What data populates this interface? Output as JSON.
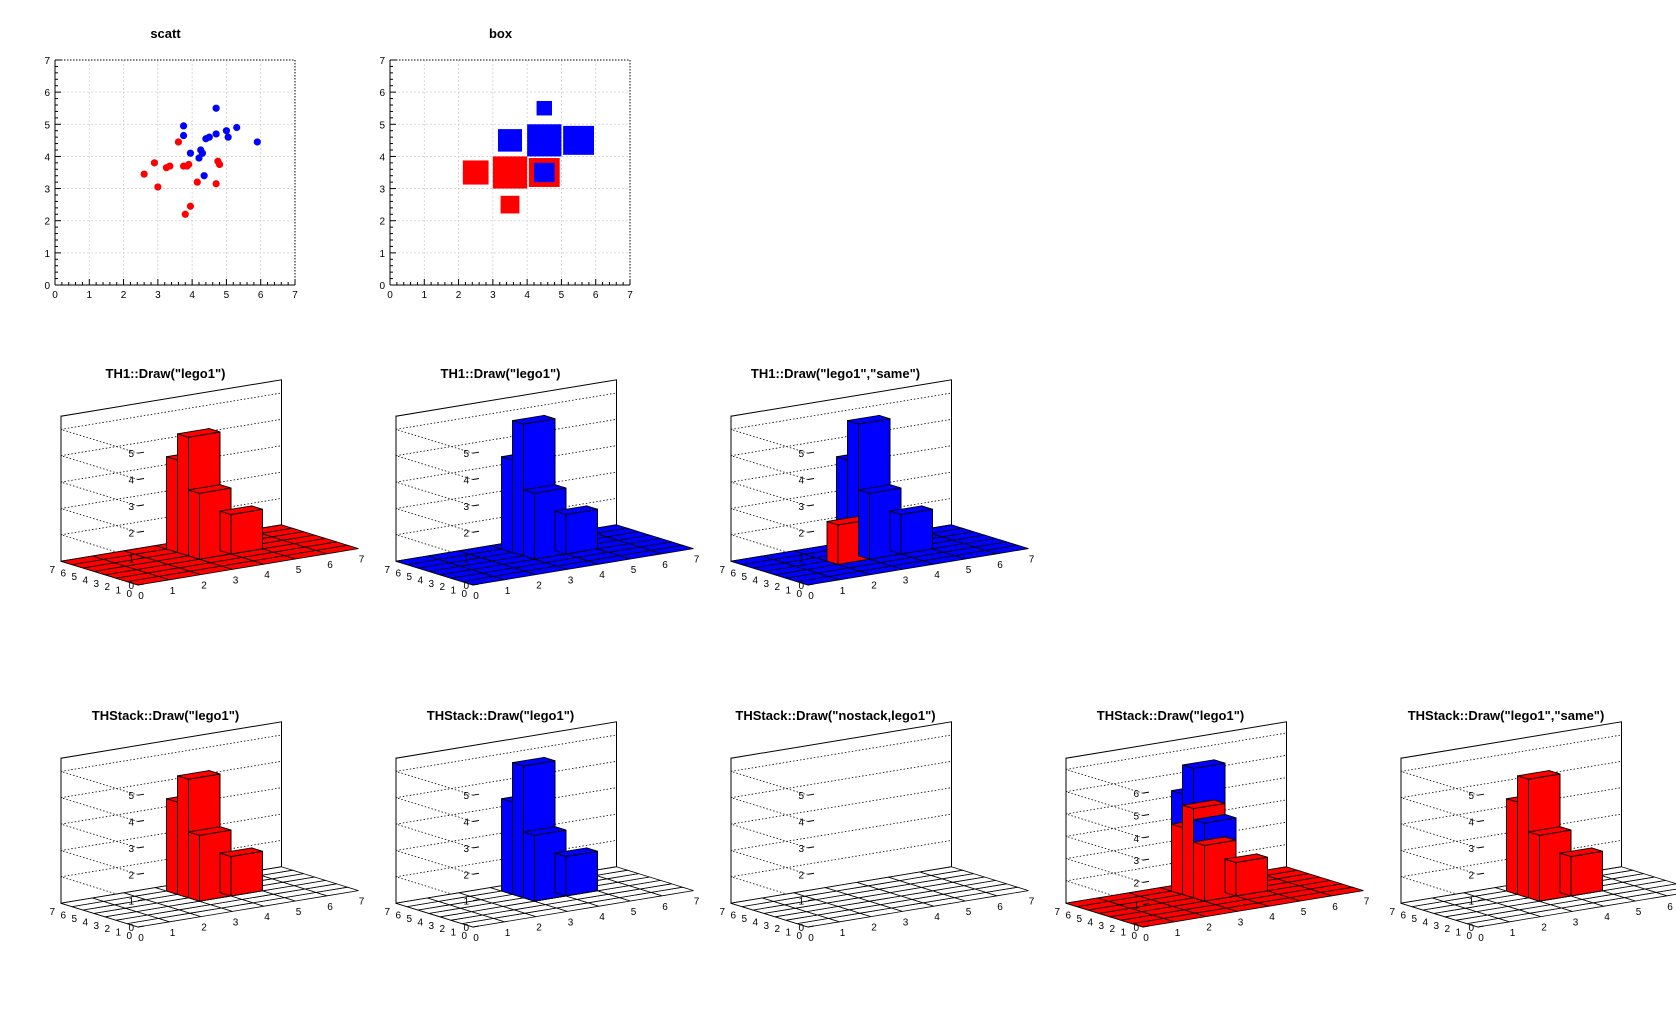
{
  "colors": {
    "red": "#ff0000",
    "blue": "#0000ff",
    "axis": "#000000",
    "grid": "#d0d0d0"
  },
  "chart_data": [
    {
      "id": "scatt",
      "type": "scatter",
      "title": "scatt",
      "xlim": [
        0,
        7
      ],
      "ylim": [
        0,
        7
      ],
      "grid": true,
      "x_ticks": [
        "0",
        "1",
        "2",
        "3",
        "4",
        "5",
        "6",
        "7"
      ],
      "y_ticks": [
        "0",
        "1",
        "2",
        "3",
        "4",
        "5",
        "6",
        "7"
      ],
      "series": [
        {
          "color": "red",
          "points": [
            [
              2.6,
              3.45
            ],
            [
              2.9,
              3.8
            ],
            [
              3.0,
              3.05
            ],
            [
              3.25,
              3.65
            ],
            [
              3.35,
              3.7
            ],
            [
              3.6,
              4.45
            ],
            [
              3.75,
              3.7
            ],
            [
              3.85,
              3.7
            ],
            [
              3.9,
              3.75
            ],
            [
              3.8,
              2.2
            ],
            [
              3.95,
              2.45
            ],
            [
              4.15,
              3.2
            ],
            [
              4.7,
              3.15
            ],
            [
              4.75,
              3.85
            ],
            [
              4.8,
              3.75
            ]
          ]
        },
        {
          "color": "blue",
          "points": [
            [
              3.75,
              4.95
            ],
            [
              3.75,
              4.65
            ],
            [
              3.95,
              4.1
            ],
            [
              4.2,
              3.95
            ],
            [
              4.25,
              4.2
            ],
            [
              4.3,
              4.1
            ],
            [
              4.35,
              3.4
            ],
            [
              4.4,
              4.55
            ],
            [
              4.5,
              4.6
            ],
            [
              4.7,
              4.7
            ],
            [
              4.7,
              5.5
            ],
            [
              5.0,
              4.8
            ],
            [
              5.05,
              4.6
            ],
            [
              5.3,
              4.9
            ],
            [
              5.9,
              4.45
            ]
          ]
        }
      ]
    },
    {
      "id": "box",
      "type": "heatmap",
      "title": "box",
      "xlim": [
        0,
        7
      ],
      "ylim": [
        0,
        7
      ],
      "x_ticks": [
        "0",
        "1",
        "2",
        "3",
        "4",
        "5",
        "6",
        "7"
      ],
      "y_ticks": [
        "0",
        "1",
        "2",
        "3",
        "4",
        "5",
        "6",
        "7"
      ],
      "series": [
        {
          "color": "red",
          "cells": [
            [
              2,
              3,
              0.75
            ],
            [
              3,
              3,
              1.0
            ],
            [
              3,
              2,
              0.55
            ],
            [
              4,
              3,
              0.9
            ]
          ]
        },
        {
          "color": "blue",
          "cells": [
            [
              3,
              4,
              0.7
            ],
            [
              4,
              4,
              1.0
            ],
            [
              5,
              4,
              0.9
            ],
            [
              4,
              5,
              0.45
            ],
            [
              4,
              3,
              0.6
            ]
          ]
        }
      ]
    },
    {
      "id": "lego-red",
      "type": "lego",
      "title": "TH1::Draw(\"lego1\")",
      "xlim": [
        0,
        7
      ],
      "ylim": [
        0,
        7
      ],
      "zlim": [
        0,
        5.5
      ],
      "z_ticks": [
        "0",
        "1",
        "2",
        "3",
        "4",
        "5"
      ],
      "floor_color": "red",
      "series": [
        {
          "color": "red",
          "bars": [
            [
              3,
              3,
              2.5
            ],
            [
              3,
              4,
              4.5
            ],
            [
              3,
              5,
              3.5
            ],
            [
              4,
              3,
              1.5
            ]
          ]
        }
      ]
    },
    {
      "id": "lego-blue",
      "type": "lego",
      "title": "TH1::Draw(\"lego1\")",
      "xlim": [
        0,
        7
      ],
      "ylim": [
        0,
        7
      ],
      "zlim": [
        0,
        5.5
      ],
      "z_ticks": [
        "0",
        "1",
        "2",
        "3",
        "4",
        "5"
      ],
      "floor_color": "blue",
      "series": [
        {
          "color": "blue",
          "bars": [
            [
              3,
              3,
              2.5
            ],
            [
              3,
              4,
              5.0
            ],
            [
              3,
              5,
              3.5
            ],
            [
              4,
              3,
              1.5
            ]
          ]
        }
      ]
    },
    {
      "id": "lego-same",
      "type": "lego",
      "title": "TH1::Draw(\"lego1\",\"same\")",
      "xlim": [
        0,
        7
      ],
      "ylim": [
        0,
        7
      ],
      "zlim": [
        0,
        5.5
      ],
      "z_ticks": [
        "0",
        "1",
        "2",
        "3",
        "4",
        "5"
      ],
      "floor_color": "blue",
      "series": [
        {
          "color": "red",
          "bars": [
            [
              3,
              4,
              4.5
            ],
            [
              2,
              3,
              1.5
            ]
          ]
        },
        {
          "color": "blue",
          "bars": [
            [
              3,
              3,
              2.5
            ],
            [
              3,
              4,
              5.0
            ],
            [
              3,
              5,
              3.5
            ],
            [
              4,
              3,
              1.5
            ]
          ]
        }
      ]
    },
    {
      "id": "stack-red",
      "type": "lego",
      "title": "THStack::Draw(\"lego1\")",
      "xlim": [
        0,
        7
      ],
      "ylim": [
        0,
        7
      ],
      "zlim": [
        0,
        5.5
      ],
      "z_ticks": [
        "0",
        "1",
        "2",
        "3",
        "4",
        "5"
      ],
      "floor_color": "none",
      "series": [
        {
          "color": "red",
          "bars": [
            [
              3,
              3,
              2.5
            ],
            [
              3,
              4,
              4.5
            ],
            [
              3,
              5,
              3.5
            ],
            [
              4,
              3,
              1.5
            ]
          ]
        }
      ]
    },
    {
      "id": "stack-blue",
      "type": "lego",
      "title": "THStack::Draw(\"lego1\")",
      "xlim": [
        0,
        7
      ],
      "ylim": [
        0,
        7
      ],
      "zlim": [
        0,
        5.5
      ],
      "z_ticks": [
        "0",
        "1",
        "2",
        "3",
        "4",
        "5"
      ],
      "floor_color": "none",
      "series": [
        {
          "color": "blue",
          "bars": [
            [
              3,
              3,
              2.5
            ],
            [
              3,
              4,
              5.0
            ],
            [
              3,
              5,
              3.5
            ],
            [
              4,
              3,
              1.5
            ]
          ]
        }
      ]
    },
    {
      "id": "stack-nostack",
      "type": "lego",
      "title": "THStack::Draw(\"nostack,lego1\")",
      "xlim": [
        0,
        7
      ],
      "ylim": [
        0,
        7
      ],
      "zlim": [
        0,
        5.5
      ],
      "z_ticks": [
        "0",
        "1",
        "2",
        "3",
        "4",
        "5"
      ],
      "floor_color": "none",
      "series": []
    },
    {
      "id": "stack-combined",
      "type": "lego",
      "title": "THStack::Draw(\"lego1\")",
      "xlim": [
        0,
        7
      ],
      "ylim": [
        0,
        7
      ],
      "zlim": [
        0,
        6.5
      ],
      "z_ticks": [
        "0",
        "1",
        "2",
        "3",
        "4",
        "5",
        "6"
      ],
      "floor_color": "red",
      "series": [
        {
          "color": "blue",
          "bars": [
            [
              3,
              4,
              5.8
            ],
            [
              3,
              5,
              4.5
            ],
            [
              3,
              3,
              3.5
            ]
          ]
        },
        {
          "color": "red",
          "bars": [
            [
              3,
              3,
              2.5
            ],
            [
              3,
              4,
              4.0
            ],
            [
              3,
              5,
              3.0
            ],
            [
              4,
              3,
              1.5
            ]
          ]
        }
      ]
    },
    {
      "id": "stack-same",
      "type": "lego",
      "title": "THStack::Draw(\"lego1\",\"same\")",
      "xlim": [
        0,
        7
      ],
      "ylim": [
        0,
        7
      ],
      "zlim": [
        0,
        5.5
      ],
      "z_ticks": [
        "0",
        "1",
        "2",
        "3",
        "4",
        "5"
      ],
      "floor_color": "none",
      "series": [
        {
          "color": "red",
          "bars": [
            [
              3,
              3,
              2.5
            ],
            [
              3,
              4,
              4.5
            ],
            [
              3,
              5,
              3.5
            ],
            [
              4,
              3,
              1.5
            ]
          ]
        }
      ]
    }
  ],
  "axis_ticks": {
    "xy": [
      "0",
      "1",
      "2",
      "3",
      "4",
      "5",
      "6",
      "7"
    ],
    "lego_xy": [
      "0",
      "1",
      "2",
      "3",
      "4",
      "5",
      "6",
      "7"
    ]
  }
}
